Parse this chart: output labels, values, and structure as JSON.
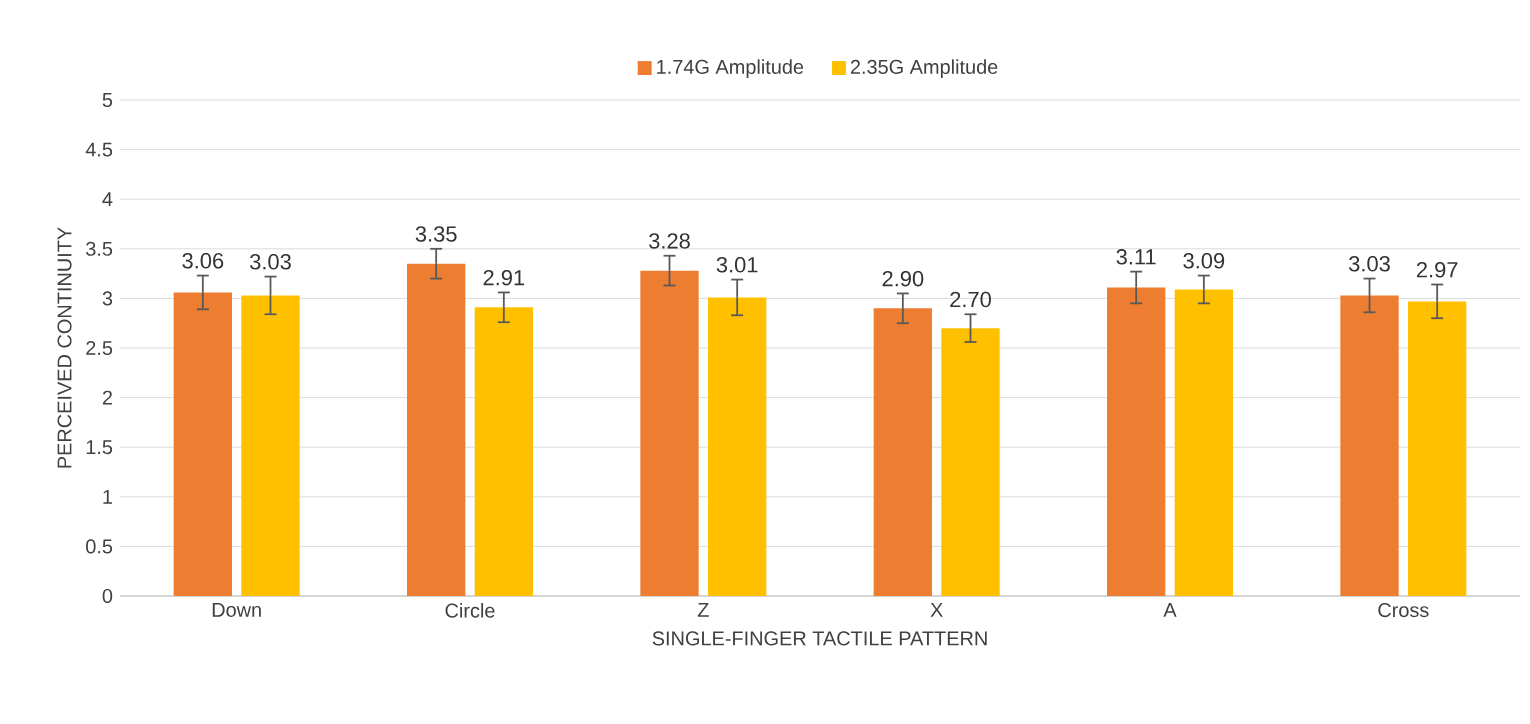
{
  "chart_data": {
    "type": "bar",
    "xlabel": "SINGLE-FINGER TACTILE PATTERN",
    "ylabel": "PERCEIVED CONTINUITY",
    "categories": [
      "Down",
      "Circle",
      "Z",
      "X",
      "A",
      "Cross"
    ],
    "series": [
      {
        "name": "1.74G Amplitude",
        "color": "#ed7d31",
        "values": [
          3.06,
          3.35,
          3.28,
          2.9,
          3.11,
          3.03
        ],
        "errors": [
          0.17,
          0.15,
          0.15,
          0.15,
          0.16,
          0.17
        ],
        "value_labels": [
          "3.06",
          "3.35",
          "3.28",
          "2.90",
          "3.11",
          "3.03"
        ]
      },
      {
        "name": "2.35G Amplitude",
        "color": "#ffc000",
        "values": [
          3.03,
          2.91,
          3.01,
          2.7,
          3.09,
          2.97
        ],
        "errors": [
          0.19,
          0.15,
          0.18,
          0.14,
          0.14,
          0.17
        ],
        "value_labels": [
          "3.03",
          "2.91",
          "3.01",
          "2.70",
          "3.09",
          "2.97"
        ]
      }
    ],
    "ylim": [
      0,
      5
    ],
    "yticks": [
      0,
      0.5,
      1,
      1.5,
      2,
      2.5,
      3,
      3.5,
      4,
      4.5,
      5
    ],
    "grid": "y",
    "legend": "top"
  }
}
